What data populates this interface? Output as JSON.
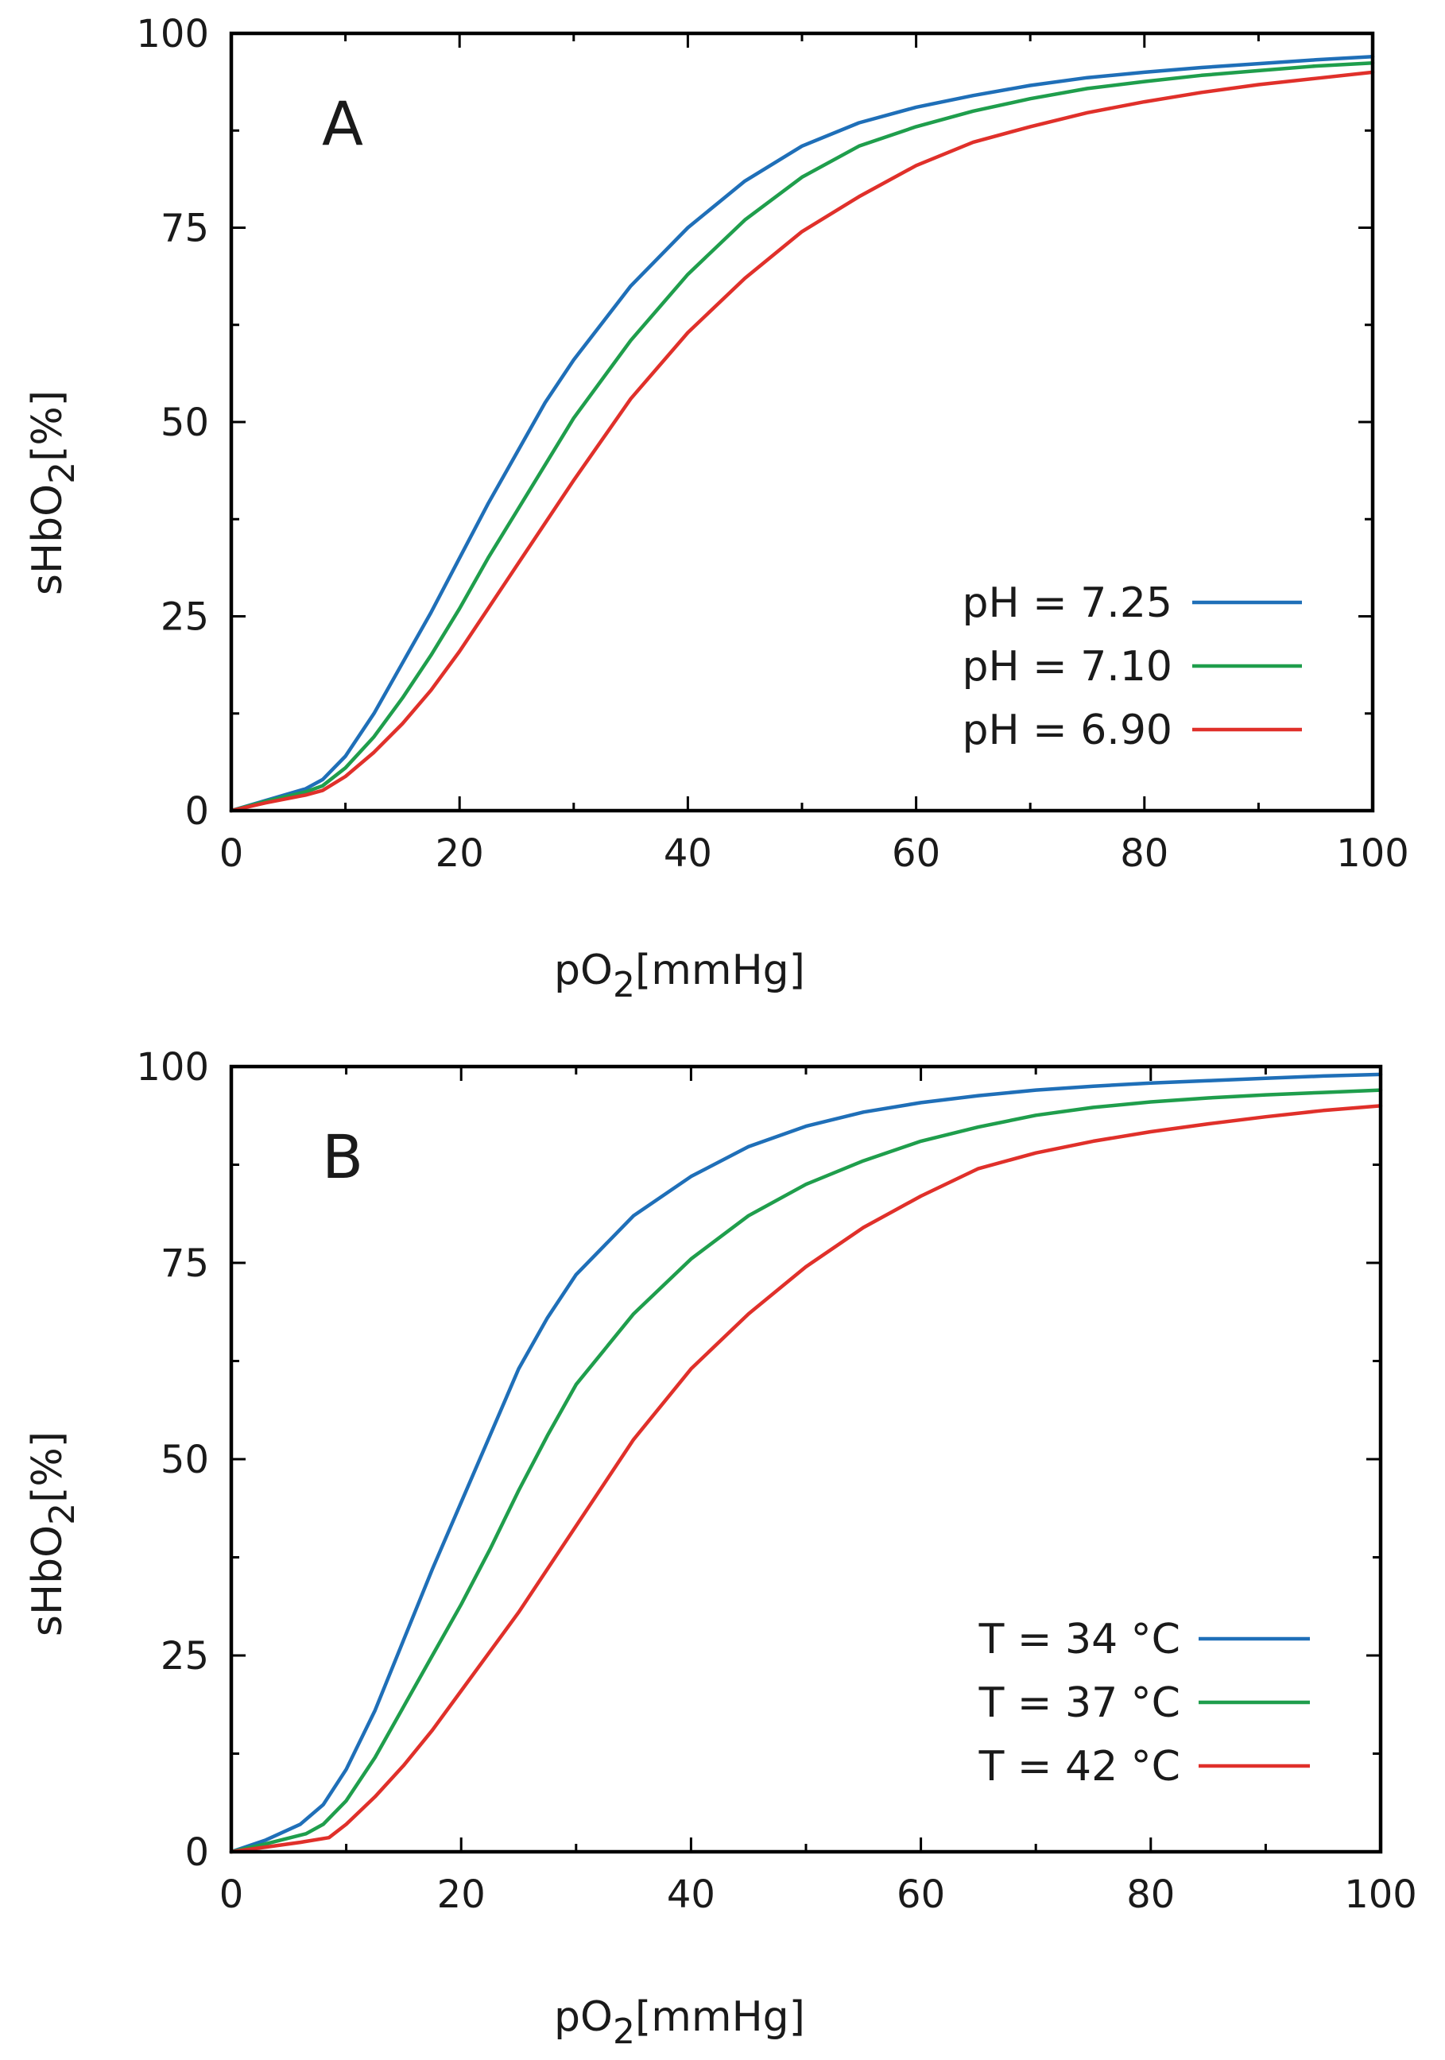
{
  "chart_data": [
    {
      "type": "line",
      "panel_label": "A",
      "xlabel_main": "pO",
      "xlabel_sub": "2",
      "xlabel_unit": "[mmHg]",
      "ylabel_main": "sHbO",
      "ylabel_sub": "2",
      "ylabel_unit": "[%]",
      "xlim": [
        0,
        100
      ],
      "ylim": [
        0,
        100
      ],
      "xticks": [
        0,
        20,
        40,
        60,
        80,
        100
      ],
      "xtick_labels": [
        "0",
        "20",
        "40",
        "60",
        "80",
        "100"
      ],
      "yticks": [
        0,
        25,
        50,
        75,
        100
      ],
      "ytick_labels": [
        "0",
        "25",
        "50",
        "75",
        "100"
      ],
      "legend_position": "bottom-right",
      "series": [
        {
          "name": "pH = 7.25",
          "color": "#1f6fb8",
          "x": [
            0,
            3,
            6.5,
            8,
            10,
            12.5,
            15,
            17.5,
            20,
            22.5,
            25,
            27.5,
            30,
            35,
            40,
            45,
            50,
            55,
            60,
            65,
            70,
            75,
            80,
            85,
            90,
            95,
            100
          ],
          "y": [
            0,
            1.3,
            2.8,
            4,
            7,
            12.5,
            19,
            25.5,
            32.5,
            39.5,
            46,
            52.5,
            58,
            67.5,
            75,
            81,
            85.5,
            88.5,
            90.5,
            92,
            93.3,
            94.3,
            95,
            95.6,
            96.1,
            96.6,
            97
          ]
        },
        {
          "name": "pH = 7.10",
          "color": "#1f9e4c",
          "x": [
            0,
            3,
            6.5,
            8,
            10,
            12.5,
            15,
            17.5,
            20,
            22.5,
            25,
            27.5,
            30,
            35,
            40,
            45,
            50,
            55,
            60,
            65,
            70,
            75,
            80,
            85,
            90,
            95,
            100
          ],
          "y": [
            0,
            1.2,
            2.4,
            3.2,
            5.5,
            9.5,
            14.5,
            20,
            26,
            32.5,
            38.5,
            44.5,
            50.5,
            60.5,
            69,
            76,
            81.5,
            85.5,
            88,
            90,
            91.6,
            92.9,
            93.8,
            94.6,
            95.2,
            95.8,
            96.2
          ]
        },
        {
          "name": "pH = 6.90",
          "color": "#e0302a",
          "x": [
            0,
            3,
            6.5,
            8,
            10,
            12.5,
            15,
            17.5,
            20,
            22.5,
            25,
            27.5,
            30,
            35,
            40,
            45,
            50,
            55,
            60,
            65,
            70,
            75,
            80,
            85,
            90,
            95,
            100
          ],
          "y": [
            0,
            1,
            2,
            2.6,
            4.4,
            7.5,
            11.2,
            15.5,
            20.5,
            26,
            31.5,
            37,
            42.5,
            53,
            61.5,
            68.5,
            74.5,
            79,
            83,
            86,
            88,
            89.8,
            91.2,
            92.4,
            93.4,
            94.2,
            95
          ]
        }
      ]
    },
    {
      "type": "line",
      "panel_label": "B",
      "xlabel_main": "pO",
      "xlabel_sub": "2",
      "xlabel_unit": "[mmHg]",
      "ylabel_main": "sHbO",
      "ylabel_sub": "2",
      "ylabel_unit": "[%]",
      "xlim": [
        0,
        100
      ],
      "ylim": [
        0,
        100
      ],
      "xticks": [
        0,
        20,
        40,
        60,
        80,
        100
      ],
      "xtick_labels": [
        "0",
        "20",
        "40",
        "60",
        "80",
        "100"
      ],
      "yticks": [
        0,
        25,
        50,
        75,
        100
      ],
      "ytick_labels": [
        "0",
        "25",
        "50",
        "75",
        "100"
      ],
      "legend_position": "bottom-right",
      "series": [
        {
          "name": "T = 34 °C",
          "color": "#1f6fb8",
          "x": [
            0,
            3,
            6,
            8,
            10,
            12.5,
            15,
            17.5,
            20,
            22.5,
            25,
            27.5,
            30,
            35,
            40,
            45,
            50,
            55,
            60,
            65,
            70,
            75,
            80,
            85,
            90,
            95,
            100
          ],
          "y": [
            0,
            1.5,
            3.5,
            6,
            10.5,
            18,
            27,
            36,
            44.5,
            53,
            61.5,
            68,
            73.5,
            81,
            86,
            89.8,
            92.4,
            94.2,
            95.4,
            96.3,
            97,
            97.5,
            97.9,
            98.2,
            98.5,
            98.8,
            99
          ]
        },
        {
          "name": "T = 37 °C",
          "color": "#1f9e4c",
          "x": [
            0,
            3,
            6.5,
            8,
            10,
            12.5,
            15,
            17.5,
            20,
            22.5,
            25,
            27.5,
            30,
            35,
            40,
            45,
            50,
            55,
            60,
            65,
            70,
            75,
            80,
            85,
            90,
            95,
            100
          ],
          "y": [
            0,
            1,
            2.3,
            3.5,
            6.5,
            12,
            18.5,
            25,
            31.5,
            38.5,
            46,
            53,
            59.5,
            68.5,
            75.5,
            81,
            85,
            88,
            90.5,
            92.3,
            93.8,
            94.8,
            95.5,
            96,
            96.4,
            96.7,
            97
          ]
        },
        {
          "name": "T = 42 °C",
          "color": "#e0302a",
          "x": [
            0,
            3,
            6,
            8.5,
            10,
            12.5,
            15,
            17.5,
            20,
            22.5,
            25,
            27.5,
            30,
            35,
            40,
            45,
            50,
            55,
            60,
            65,
            70,
            75,
            80,
            85,
            90,
            95,
            100
          ],
          "y": [
            0,
            0.6,
            1.2,
            1.8,
            3.5,
            7,
            11,
            15.5,
            20.5,
            25.5,
            30.5,
            36,
            41.5,
            52.5,
            61.5,
            68.5,
            74.5,
            79.5,
            83.5,
            87,
            89,
            90.5,
            91.7,
            92.7,
            93.6,
            94.4,
            95
          ]
        }
      ]
    }
  ]
}
